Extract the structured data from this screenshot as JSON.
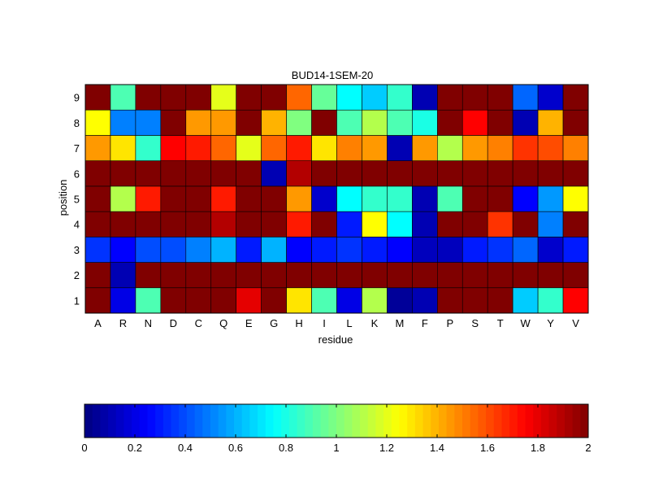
{
  "chart_data": {
    "type": "heatmap",
    "title": "BUD14-1SEM-20",
    "xlabel": "residue",
    "ylabel": "position",
    "x_categories": [
      "A",
      "R",
      "N",
      "D",
      "C",
      "Q",
      "E",
      "G",
      "H",
      "I",
      "L",
      "K",
      "M",
      "F",
      "P",
      "S",
      "T",
      "W",
      "Y",
      "V"
    ],
    "y_categories": [
      "1",
      "2",
      "3",
      "4",
      "5",
      "6",
      "7",
      "8",
      "9"
    ],
    "values": [
      [
        2.0,
        0.2,
        0.9,
        2.0,
        2.0,
        2.0,
        1.8,
        2.0,
        1.3,
        0.9,
        0.2,
        1.1,
        0.05,
        0.1,
        2.0,
        2.0,
        2.0,
        0.65,
        0.85,
        1.75
      ],
      [
        2.0,
        0.1,
        2.0,
        2.0,
        2.0,
        2.0,
        2.0,
        2.0,
        2.0,
        2.0,
        2.0,
        2.0,
        2.0,
        2.0,
        2.0,
        2.0,
        2.0,
        2.0,
        2.0,
        2.0
      ],
      [
        0.35,
        0.25,
        0.4,
        0.4,
        0.5,
        0.6,
        0.3,
        0.6,
        0.25,
        0.3,
        0.35,
        0.3,
        0.25,
        0.12,
        0.12,
        0.3,
        0.35,
        0.45,
        0.15,
        0.3
      ],
      [
        2.0,
        2.0,
        2.0,
        2.0,
        2.0,
        1.9,
        2.0,
        2.0,
        1.7,
        2.0,
        0.3,
        1.25,
        0.75,
        0.1,
        2.0,
        2.0,
        1.65,
        2.0,
        0.5,
        2.0
      ],
      [
        2.0,
        1.1,
        1.7,
        2.0,
        2.0,
        1.7,
        2.0,
        2.0,
        1.45,
        0.15,
        0.75,
        0.85,
        0.85,
        0.1,
        0.9,
        2.0,
        2.0,
        0.25,
        0.55,
        1.25
      ],
      [
        2.0,
        2.0,
        2.0,
        2.0,
        2.0,
        2.0,
        2.0,
        0.1,
        1.9,
        2.0,
        2.0,
        2.0,
        2.0,
        2.0,
        2.0,
        2.0,
        2.0,
        2.0,
        2.0,
        2.0
      ],
      [
        1.45,
        1.3,
        0.85,
        1.75,
        1.7,
        1.55,
        1.2,
        1.55,
        1.7,
        1.3,
        1.5,
        1.45,
        0.1,
        1.45,
        1.1,
        1.45,
        1.5,
        1.65,
        1.6,
        1.5
      ],
      [
        1.25,
        0.5,
        0.5,
        2.0,
        1.45,
        1.45,
        2.0,
        1.4,
        1.0,
        2.0,
        0.9,
        1.1,
        0.9,
        0.8,
        2.0,
        1.75,
        2.0,
        0.1,
        1.4,
        2.0
      ],
      [
        2.0,
        0.9,
        2.0,
        2.0,
        2.0,
        1.2,
        2.0,
        2.0,
        1.55,
        0.95,
        0.75,
        0.65,
        0.85,
        0.1,
        2.0,
        2.0,
        2.0,
        0.45,
        0.15,
        2.0
      ]
    ],
    "colorbar": {
      "colormap": "jet",
      "range": [
        0,
        2
      ],
      "ticks": [
        "0",
        "0.2",
        "0.4",
        "0.6",
        "0.8",
        "1",
        "1.2",
        "1.4",
        "1.6",
        "1.8",
        "2"
      ],
      "placement": "bottom"
    }
  }
}
